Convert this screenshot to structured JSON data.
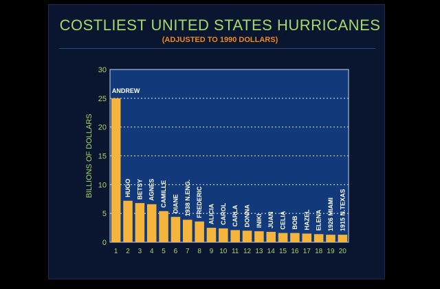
{
  "chart_data": {
    "type": "bar",
    "title": "COSTLIEST UNITED STATES HURRICANES",
    "subtitle": "(ADJUSTED TO 1990 DOLLARS)",
    "ylabel": "BILLIONS OF DOLLARS",
    "xlabel": "",
    "ylim": [
      0,
      30
    ],
    "yticks": [
      "0",
      "5",
      "10",
      "15",
      "20",
      "25",
      "30"
    ],
    "categories": [
      "1",
      "2",
      "3",
      "4",
      "5",
      "6",
      "7",
      "8",
      "9",
      "10",
      "11",
      "12",
      "13",
      "14",
      "15",
      "16",
      "17",
      "18",
      "19",
      "20"
    ],
    "bar_labels": [
      "ANDREW",
      "HUGO",
      "BETSY",
      "AGNES",
      "CAMILLE",
      "DIANE",
      "1938 N.ENG.",
      "FREDERIC",
      "ALICIA",
      "CAROL",
      "CARLA",
      "DONNA",
      "INIKI",
      "JUAN",
      "CELIA",
      "BOB",
      "HAZEL",
      "ELENA",
      "1926 MIAMI",
      "1915 N.TEXAS"
    ],
    "values": [
      25,
      7.2,
      6.8,
      6.6,
      5.4,
      4.4,
      3.9,
      3.6,
      2.5,
      2.4,
      2.1,
      2.0,
      1.9,
      1.8,
      1.6,
      1.6,
      1.5,
      1.4,
      1.3,
      1.3
    ],
    "grid": true,
    "colors": {
      "bar": "#f5b43b",
      "plot_bg": "#123a7a",
      "axis_text": "#a6d96a",
      "title": "#a6d96a",
      "subtitle": "#f08a1c",
      "grid": "#ffffff",
      "bar_label": "#ffffff"
    }
  }
}
